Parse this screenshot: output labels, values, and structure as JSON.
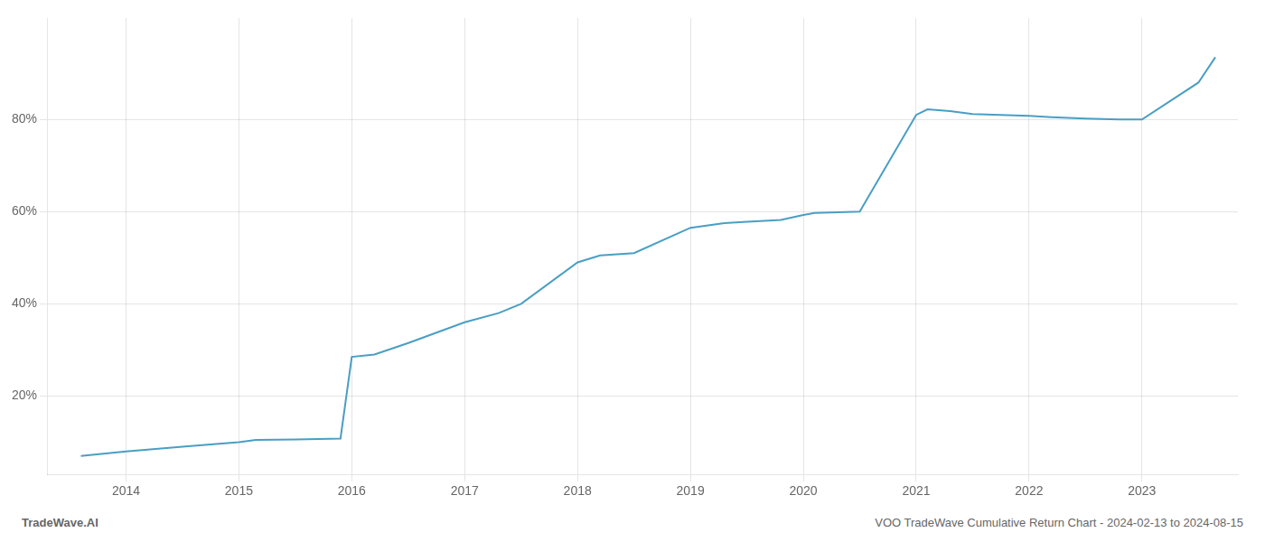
{
  "chart_data": {
    "type": "line",
    "x": [
      2013.6,
      2014.0,
      2014.5,
      2015.0,
      2015.15,
      2015.5,
      2015.9,
      2016.0,
      2016.2,
      2016.5,
      2017.0,
      2017.3,
      2017.5,
      2018.0,
      2018.2,
      2018.5,
      2019.0,
      2019.3,
      2019.5,
      2019.8,
      2020.0,
      2020.1,
      2020.5,
      2021.0,
      2021.1,
      2021.3,
      2021.5,
      2022.0,
      2022.2,
      2022.5,
      2022.8,
      2023.0,
      2023.5,
      2023.65
    ],
    "values": [
      0.07,
      0.08,
      0.09,
      0.1,
      0.105,
      0.106,
      0.108,
      0.285,
      0.29,
      0.315,
      0.36,
      0.38,
      0.4,
      0.49,
      0.505,
      0.51,
      0.565,
      0.575,
      0.578,
      0.582,
      0.593,
      0.597,
      0.6,
      0.81,
      0.822,
      0.818,
      0.812,
      0.808,
      0.805,
      0.802,
      0.8,
      0.8,
      0.88,
      0.935
    ],
    "color": "#4a9ec4",
    "xlim": [
      2013.3,
      2023.85
    ],
    "xticks": [
      2014,
      2015,
      2016,
      2017,
      2018,
      2019,
      2020,
      2021,
      2022,
      2023
    ],
    "ylim": [
      0.03,
      1.02
    ],
    "yticks": [
      {
        "value": 0.2,
        "label": "20%"
      },
      {
        "value": 0.4,
        "label": "40%"
      },
      {
        "value": 0.6,
        "label": "60%"
      },
      {
        "value": 0.8,
        "label": "80%"
      }
    ],
    "grid": true,
    "annotations": [
      "TradeWave.AI",
      "VOO TradeWave Cumulative Return Chart - 2024-02-13 to 2024-08-15"
    ]
  }
}
